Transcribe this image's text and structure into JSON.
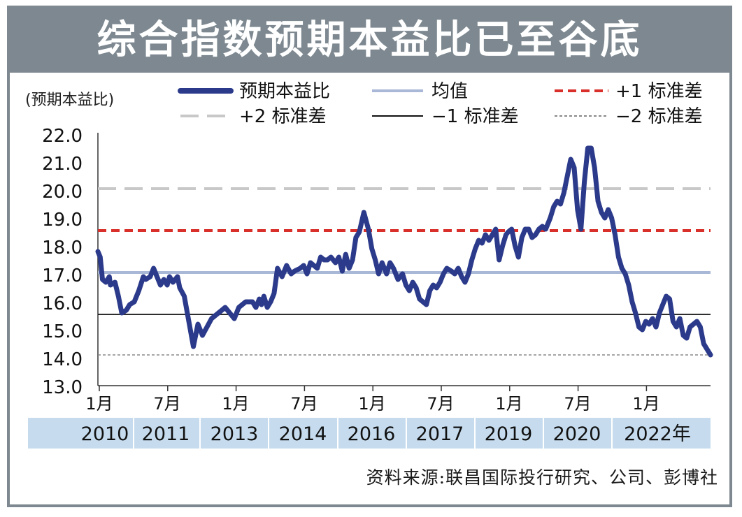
{
  "title": "综合指数预期本益比已至谷底",
  "source": "资料来源:联昌国际投行研究、公司、彭博社",
  "chart_data": {
    "type": "line",
    "ylabel": "(预期本益比)",
    "ylim": [
      13.0,
      22.0
    ],
    "yticks": [
      "22.0",
      "21.0",
      "20.0",
      "19.0",
      "18.0",
      "17.0",
      "16.0",
      "15.0",
      "14.0",
      "13.0"
    ],
    "x_month_labels": [
      "1月",
      "7月",
      "1月",
      "7月",
      "1月",
      "7月",
      "1月",
      "7月",
      "1月"
    ],
    "x_year_labels": [
      "2010",
      "2011",
      "2013",
      "2014",
      "2016",
      "2017",
      "2019",
      "2020",
      "2022年"
    ],
    "colors": {
      "pe": "#2b3a8a",
      "mean": "#a9b8d6",
      "plus1": "#d9302b",
      "plus2": "#c8c8c8",
      "minus1": "#111111",
      "minus2": "#888888",
      "band": "#c6dcee"
    },
    "series": [
      {
        "name": "预期本益比",
        "x": [
          0.0,
          0.1,
          0.2,
          0.35,
          0.5,
          0.55,
          0.75,
          0.9,
          1.05,
          1.25,
          1.4,
          1.6,
          1.8,
          2.0,
          2.1,
          2.3,
          2.45,
          2.6,
          2.75,
          2.9,
          3.05,
          3.15,
          3.3,
          3.5,
          3.6,
          3.8,
          4.0,
          4.2,
          4.4,
          4.6,
          4.8,
          5.0,
          5.15,
          5.3,
          5.45,
          5.6,
          5.8,
          6.0,
          6.2,
          6.5,
          6.8,
          6.95,
          7.1,
          7.2,
          7.3,
          7.45,
          7.6,
          7.75,
          7.9,
          8.1,
          8.3,
          8.5,
          8.65,
          8.9,
          9.05,
          9.2,
          9.35,
          9.5,
          9.65,
          9.8,
          9.95,
          10.1,
          10.25,
          10.45,
          10.6,
          10.75,
          10.9,
          11.05,
          11.2,
          11.35,
          11.5,
          11.7,
          11.9,
          12.05,
          12.2,
          12.35,
          12.5,
          12.7,
          12.85,
          13.0,
          13.2,
          13.4,
          13.55,
          13.7,
          13.85,
          14.0,
          14.15,
          14.3,
          14.45,
          14.6,
          14.75,
          14.9,
          15.05,
          15.2,
          15.35,
          15.55,
          15.7,
          15.85,
          16.0,
          16.15,
          16.3,
          16.45,
          16.6,
          16.75,
          16.9,
          17.05,
          17.2,
          17.35,
          17.5,
          17.65,
          17.8,
          17.95,
          18.05,
          18.2,
          18.35,
          18.5,
          18.65,
          18.8,
          18.95,
          19.1,
          19.25,
          19.4,
          19.55,
          19.7,
          19.9,
          20.05,
          20.2,
          20.35,
          20.5,
          20.65,
          20.8,
          20.95,
          21.1,
          21.25,
          21.4,
          21.55,
          21.7,
          21.85,
          22.0,
          22.15,
          22.3,
          22.45,
          22.6,
          22.75,
          22.9,
          23.05,
          23.2,
          23.35,
          23.5,
          23.65,
          23.8,
          23.95,
          24.1,
          24.25,
          24.4,
          24.55,
          24.7,
          24.85,
          25.0,
          25.15,
          25.3,
          25.45,
          25.6,
          25.75,
          25.9,
          26.05,
          26.2,
          26.35,
          26.5,
          26.65,
          26.8,
          26.95
        ],
        "values": [
          17.8,
          17.6,
          16.8,
          16.7,
          16.9,
          16.6,
          16.7,
          16.2,
          15.6,
          15.7,
          15.9,
          16.0,
          16.4,
          16.9,
          16.8,
          16.9,
          17.2,
          16.9,
          16.6,
          16.8,
          16.6,
          16.9,
          16.7,
          16.9,
          16.5,
          16.2,
          15.3,
          14.4,
          15.2,
          14.8,
          15.1,
          15.4,
          15.5,
          15.6,
          15.7,
          15.8,
          15.6,
          15.4,
          15.8,
          16.0,
          16.0,
          15.8,
          16.1,
          15.9,
          16.2,
          15.8,
          16.0,
          16.3,
          17.2,
          16.9,
          17.3,
          17.0,
          17.1,
          17.2,
          17.3,
          17.0,
          17.4,
          17.3,
          17.2,
          17.6,
          17.5,
          17.5,
          17.6,
          17.4,
          17.6,
          17.1,
          17.7,
          17.2,
          17.5,
          18.3,
          18.5,
          19.2,
          18.6,
          17.9,
          17.5,
          17.0,
          17.4,
          17.0,
          17.4,
          17.2,
          16.8,
          17.0,
          16.6,
          16.4,
          16.7,
          16.5,
          16.1,
          16.0,
          15.9,
          16.4,
          16.6,
          16.5,
          16.7,
          17.0,
          17.2,
          17.1,
          17.0,
          17.2,
          16.9,
          16.7,
          17.0,
          17.5,
          17.9,
          18.2,
          18.1,
          18.4,
          18.2,
          18.4,
          18.6,
          17.5,
          18.0,
          18.4,
          18.5,
          18.6,
          18.0,
          17.6,
          18.3,
          18.6,
          18.6,
          18.3,
          18.4,
          18.6,
          18.7,
          18.6,
          19.0,
          19.4,
          19.6,
          19.5,
          19.9,
          20.5,
          21.1,
          20.8,
          19.3,
          18.6,
          20.3,
          21.5,
          21.5,
          20.8,
          19.6,
          19.2,
          19.0,
          19.3,
          19.0,
          18.4,
          17.6,
          17.2,
          17.0,
          16.6,
          16.0,
          15.6,
          15.1,
          15.0,
          15.3,
          15.2,
          15.4,
          15.1,
          15.6,
          15.9,
          16.2,
          16.1,
          15.3,
          15.1,
          15.4,
          14.8,
          14.7,
          15.1,
          15.2,
          15.3,
          15.1,
          14.5,
          14.3,
          14.1
        ]
      },
      {
        "name": "均值",
        "value": 17.05
      },
      {
        "name": "+1 标准差",
        "value": 18.55
      },
      {
        "name": "+2 标准差",
        "value": 20.05
      },
      {
        "name": "−1 标准差",
        "value": 15.55
      },
      {
        "name": "−2 标准差",
        "value": 14.1
      }
    ],
    "grid": false,
    "legend_position": "top"
  }
}
